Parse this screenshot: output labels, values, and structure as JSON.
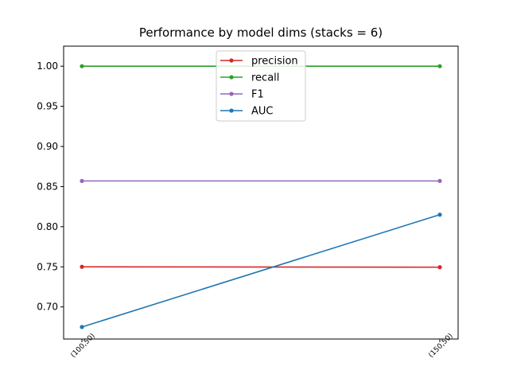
{
  "chart_data": {
    "type": "line",
    "title": "Performance by model dims (stacks = 6)",
    "xlabel": "",
    "ylabel": "",
    "categories": [
      "(100,50)",
      "(150,50)"
    ],
    "ylim": [
      0.66,
      1.025
    ],
    "y_ticks": [
      0.7,
      0.75,
      0.8,
      0.85,
      0.9,
      0.95,
      1.0
    ],
    "y_tick_labels": [
      "0.70",
      "0.75",
      "0.80",
      "0.85",
      "0.90",
      "0.95",
      "1.00"
    ],
    "grid": false,
    "legend_position": "top-center",
    "series": [
      {
        "name": "precision",
        "color": "#d62728",
        "values": [
          0.75,
          0.7495
        ]
      },
      {
        "name": "recall",
        "color": "#2ca02c",
        "values": [
          1.0,
          1.0
        ]
      },
      {
        "name": "F1",
        "color": "#9467bd",
        "values": [
          0.857,
          0.857
        ]
      },
      {
        "name": "AUC",
        "color": "#1f77b4",
        "values": [
          0.675,
          0.815
        ]
      }
    ]
  }
}
